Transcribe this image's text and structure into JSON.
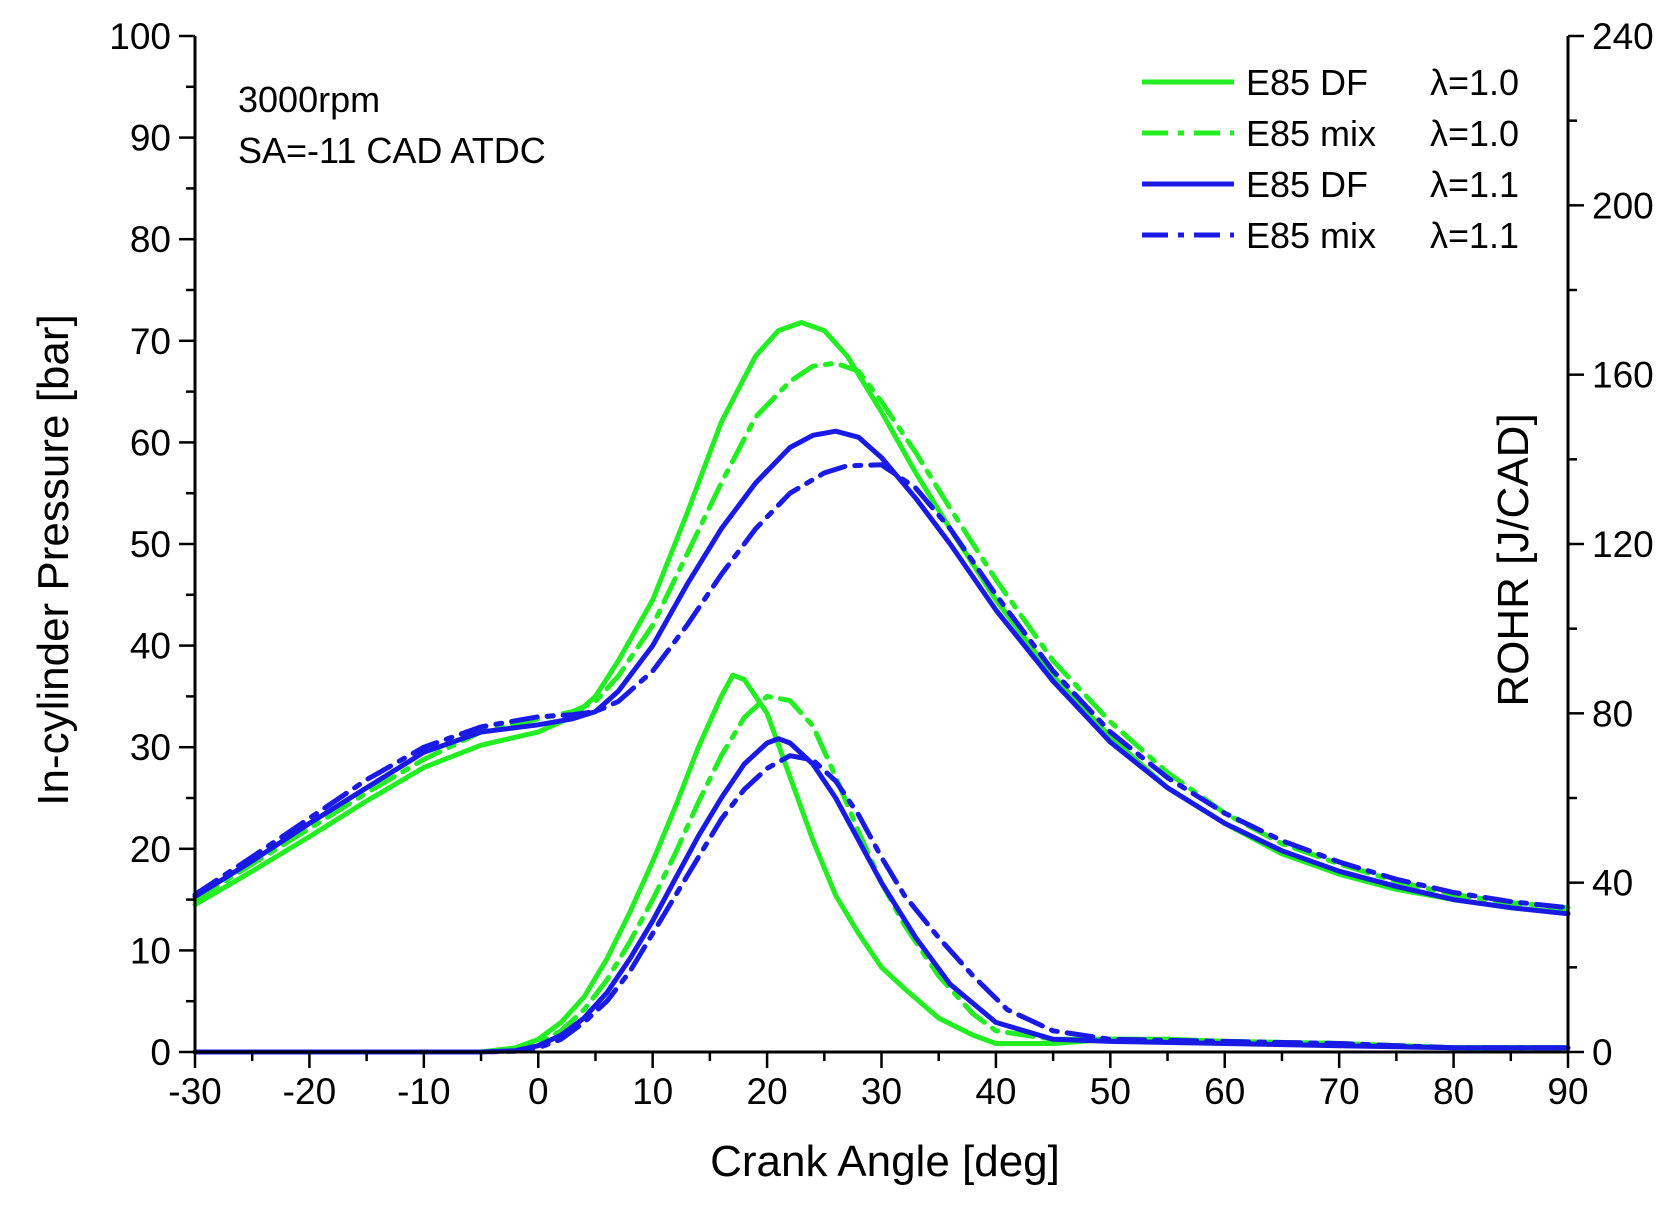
{
  "chart_data": {
    "type": "line",
    "annotations": [
      "3000rpm",
      "SA=-11 CAD ATDC"
    ],
    "xlabel": "Crank Angle [deg]",
    "ylabel_left": "In-cylinder Pressure [bar]",
    "ylabel_right": "ROHR [J/CAD]",
    "xlim": [
      -30,
      90
    ],
    "ylim_left": [
      0,
      100
    ],
    "ylim_right": [
      0,
      240
    ],
    "x_ticks": [
      -30,
      -20,
      -10,
      0,
      10,
      20,
      30,
      40,
      50,
      60,
      70,
      80,
      90
    ],
    "x_tick_labels": [
      "-30",
      "-20",
      "-10",
      "0",
      "10",
      "20",
      "30",
      "40",
      "50",
      "60",
      "70",
      "80",
      "90"
    ],
    "y_left_ticks": [
      0,
      10,
      20,
      30,
      40,
      50,
      60,
      70,
      80,
      90,
      100
    ],
    "y_left_tick_labels": [
      "0",
      "10",
      "20",
      "30",
      "40",
      "50",
      "60",
      "70",
      "80",
      "90",
      "100"
    ],
    "y_right_ticks": [
      0,
      40,
      80,
      120,
      160,
      200,
      240
    ],
    "y_right_tick_labels": [
      "0",
      "40",
      "80",
      "120",
      "160",
      "200",
      "240"
    ],
    "legend_position": "top-right",
    "legend": [
      {
        "name": "E85 DF",
        "lambda": "λ=1.0",
        "color": "#22ee22",
        "dash": "solid"
      },
      {
        "name": "E85 mix",
        "lambda": "λ=1.0",
        "color": "#22ee22",
        "dash": "dashdot"
      },
      {
        "name": "E85 DF",
        "lambda": "λ=1.1",
        "color": "#1a1ae6",
        "dash": "solid"
      },
      {
        "name": "E85 mix",
        "lambda": "λ=1.1",
        "color": "#1a1ae6",
        "dash": "dashdot"
      }
    ],
    "series": [
      {
        "name": "E85 DF λ=1.0 pressure",
        "axis": "left",
        "color": "#22ee22",
        "dash": "solid",
        "x": [
          -30,
          -25,
          -20,
          -15,
          -10,
          -5,
          0,
          3,
          5,
          7,
          10,
          13,
          16,
          19,
          21,
          23,
          25,
          27,
          30,
          33,
          36,
          40,
          45,
          50,
          55,
          60,
          65,
          70,
          75,
          80,
          85,
          90
        ],
        "y": [
          14.5,
          17.8,
          21.2,
          24.7,
          28,
          30.2,
          31.5,
          33,
          35,
          38.5,
          44.5,
          53,
          62,
          68.5,
          71,
          71.8,
          71,
          68.5,
          63,
          57,
          51.5,
          44.5,
          37,
          31,
          26,
          22.5,
          19.5,
          17.5,
          16,
          15,
          14.2,
          13.7
        ]
      },
      {
        "name": "E85 mix λ=1.0 pressure",
        "axis": "left",
        "color": "#22ee22",
        "dash": "dashdot",
        "x": [
          -30,
          -25,
          -20,
          -15,
          -10,
          -5,
          0,
          3,
          5,
          7,
          10,
          13,
          16,
          19,
          22,
          24,
          26,
          28,
          30,
          33,
          36,
          40,
          45,
          50,
          55,
          60,
          65,
          70,
          75,
          80,
          85,
          90
        ],
        "y": [
          15,
          18.5,
          22,
          25.5,
          28.8,
          31.5,
          32.8,
          33.5,
          34.5,
          37,
          42,
          49,
          56,
          62.5,
          66,
          67.5,
          67.8,
          67,
          64,
          59,
          53.5,
          46.5,
          38.5,
          32.5,
          27.5,
          23.5,
          20.5,
          18.5,
          16.8,
          15.5,
          14.7,
          14.2
        ]
      },
      {
        "name": "E85 DF λ=1.1 pressure",
        "axis": "left",
        "color": "#1a1ae6",
        "dash": "solid",
        "x": [
          -30,
          -25,
          -20,
          -15,
          -10,
          -5,
          0,
          3,
          5,
          7,
          10,
          13,
          16,
          19,
          22,
          24,
          26,
          28,
          30,
          33,
          36,
          40,
          45,
          50,
          55,
          60,
          65,
          70,
          75,
          80,
          85,
          90
        ],
        "y": [
          15.3,
          18.8,
          22.5,
          26,
          29.5,
          31.5,
          32.2,
          32.8,
          33.5,
          35.5,
          40,
          46,
          51.5,
          56,
          59.5,
          60.7,
          61.1,
          60.5,
          58.5,
          54.5,
          50,
          43.5,
          36.5,
          30.5,
          26,
          22.5,
          19.8,
          17.8,
          16.3,
          15,
          14.2,
          13.6
        ]
      },
      {
        "name": "E85 mix λ=1.1 pressure",
        "axis": "left",
        "color": "#1a1ae6",
        "dash": "dashdot",
        "x": [
          -30,
          -25,
          -20,
          -15,
          -10,
          -5,
          0,
          3,
          5,
          7,
          10,
          13,
          16,
          19,
          22,
          25,
          27,
          30,
          33,
          36,
          40,
          45,
          50,
          55,
          60,
          65,
          70,
          75,
          80,
          85,
          90
        ],
        "y": [
          15.5,
          19.2,
          23,
          26.8,
          30,
          32,
          33,
          33.2,
          33.5,
          34.5,
          37.5,
          42,
          47,
          51.5,
          55,
          57,
          57.7,
          57.8,
          55.5,
          51.5,
          45,
          37.5,
          31.5,
          27,
          23.5,
          20.8,
          18.7,
          17,
          15.7,
          14.8,
          14.2
        ]
      },
      {
        "name": "E85 DF λ=1.0 ROHR",
        "axis": "right",
        "color": "#22ee22",
        "dash": "solid",
        "x": [
          -30,
          -10,
          -5,
          -2,
          0,
          2,
          4,
          6,
          8,
          10,
          12,
          14,
          16,
          17,
          18,
          20,
          22,
          24,
          26,
          28,
          30,
          32,
          35,
          38,
          40,
          45,
          50,
          55,
          60,
          70,
          80,
          90
        ],
        "y": [
          0,
          0,
          0,
          1,
          3,
          7,
          13,
          22,
          33,
          45,
          58,
          72,
          84,
          89,
          88,
          80,
          65,
          50,
          37,
          28,
          20,
          15,
          8,
          4,
          2,
          2,
          3,
          3,
          2.5,
          2,
          1,
          1
        ]
      },
      {
        "name": "E85 mix λ=1.0 ROHR",
        "axis": "right",
        "color": "#22ee22",
        "dash": "dashdot",
        "x": [
          -30,
          -10,
          -5,
          -2,
          0,
          2,
          4,
          6,
          8,
          10,
          12,
          14,
          16,
          18,
          20,
          22,
          24,
          26,
          28,
          30,
          32,
          35,
          38,
          40,
          45,
          50,
          55,
          60,
          70,
          80,
          90
        ],
        "y": [
          0,
          0,
          0,
          0.5,
          2,
          5,
          10,
          17,
          26,
          36,
          47,
          59,
          70,
          79,
          84,
          83,
          77,
          65,
          52,
          40,
          30,
          18,
          9,
          5,
          3,
          3,
          3,
          2.5,
          2,
          1,
          1
        ]
      },
      {
        "name": "E85 DF λ=1.1 ROHR",
        "axis": "right",
        "color": "#1a1ae6",
        "dash": "solid",
        "x": [
          -30,
          -10,
          -5,
          -2,
          0,
          2,
          4,
          6,
          8,
          10,
          12,
          14,
          16,
          18,
          20,
          21,
          22,
          24,
          26,
          28,
          30,
          33,
          36,
          40,
          45,
          50,
          60,
          70,
          80,
          90
        ],
        "y": [
          0,
          0,
          0,
          0.3,
          1.5,
          4,
          8,
          14,
          22,
          31,
          41,
          51,
          60,
          68,
          73,
          74,
          73,
          68,
          60,
          50,
          40,
          27,
          16,
          7,
          3,
          2.5,
          2,
          1.5,
          1,
          1
        ]
      },
      {
        "name": "E85 mix λ=1.1 ROHR",
        "axis": "right",
        "color": "#1a1ae6",
        "dash": "dashdot",
        "x": [
          -30,
          -10,
          -5,
          -2,
          0,
          2,
          4,
          6,
          8,
          10,
          12,
          14,
          16,
          18,
          20,
          22,
          24,
          26,
          28,
          30,
          32,
          35,
          38,
          41,
          45,
          50,
          60,
          70,
          80,
          90
        ],
        "y": [
          0,
          0,
          0,
          0.2,
          1,
          3,
          7,
          12,
          19,
          28,
          37,
          46,
          55,
          62,
          67,
          70,
          69,
          64,
          56,
          46,
          37,
          27,
          18,
          10,
          5,
          3,
          2.5,
          2,
          1,
          1
        ]
      }
    ]
  }
}
